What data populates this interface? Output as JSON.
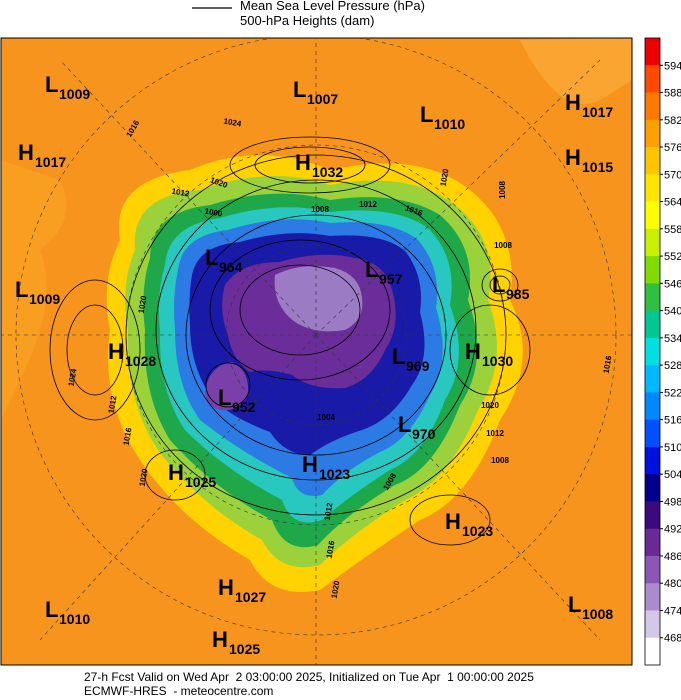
{
  "legend": [
    "Mean Sea Level Pressure (hPa)",
    "500-hPa Heights (dam)"
  ],
  "colorbar": {
    "ticks": [
      594,
      588,
      582,
      576,
      570,
      564,
      558,
      552,
      546,
      540,
      534,
      528,
      522,
      516,
      510,
      504,
      498,
      492,
      486,
      480,
      474,
      468
    ],
    "colors": [
      "#ee0000",
      "#ff4a00",
      "#ff7800",
      "#ffa000",
      "#ffc400",
      "#ffe600",
      "#ffff00",
      "#c8f000",
      "#80dc00",
      "#30c040",
      "#00c890",
      "#00e0e0",
      "#00b8ff",
      "#0088ff",
      "#0050ff",
      "#0010e0",
      "#00008c",
      "#3c0a80",
      "#6a2a96",
      "#8a58b4",
      "#aa8ccc",
      "#d4c8ea",
      "#ffffff"
    ]
  },
  "pressure_centers": [
    {
      "type": "L",
      "value": 1009
    },
    {
      "type": "L",
      "value": 1007
    },
    {
      "type": "L",
      "value": 1010
    },
    {
      "type": "H",
      "value": 1017
    },
    {
      "type": "H",
      "value": 1017
    },
    {
      "type": "H",
      "value": 1032
    },
    {
      "type": "H",
      "value": 1015
    },
    {
      "type": "L",
      "value": 964
    },
    {
      "type": "L",
      "value": 957
    },
    {
      "type": "L",
      "value": 985
    },
    {
      "type": "L",
      "value": 1009
    },
    {
      "type": "H",
      "value": 1028
    },
    {
      "type": "H",
      "value": 1030
    },
    {
      "type": "L",
      "value": 969
    },
    {
      "type": "L",
      "value": 952
    },
    {
      "type": "L",
      "value": 970
    },
    {
      "type": "H",
      "value": 1025
    },
    {
      "type": "H",
      "value": 1023
    },
    {
      "type": "H",
      "value": 1023
    },
    {
      "type": "H",
      "value": 1027
    },
    {
      "type": "L",
      "value": 1010
    },
    {
      "type": "L",
      "value": 1008
    },
    {
      "type": "H",
      "value": 1025
    }
  ],
  "contour_labels": [
    1016,
    1024,
    1020,
    1012,
    1000,
    1008,
    1012,
    1016,
    1020,
    1008,
    1008,
    1016,
    1020,
    1012,
    1008,
    1024,
    1020,
    1012,
    1016,
    1020,
    1004,
    1012,
    1016,
    1020,
    1008
  ],
  "footer": [
    "27-h Fcst Valid on Wed Apr  2 03:00:00 2025, Initialized on Tue Apr  1 00:00:00 2025",
    "ECMWF-HRES  - meteocentre.com"
  ]
}
